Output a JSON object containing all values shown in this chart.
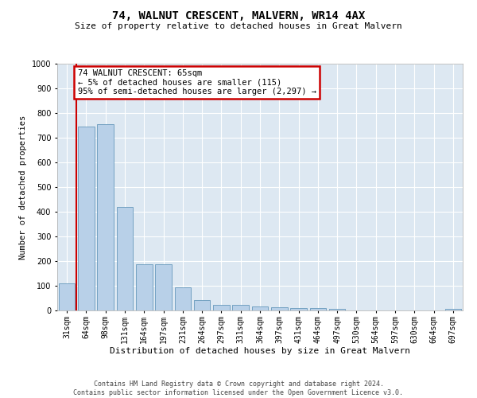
{
  "title": "74, WALNUT CRESCENT, MALVERN, WR14 4AX",
  "subtitle": "Size of property relative to detached houses in Great Malvern",
  "xlabel": "Distribution of detached houses by size in Great Malvern",
  "ylabel": "Number of detached properties",
  "footer_line1": "Contains HM Land Registry data © Crown copyright and database right 2024.",
  "footer_line2": "Contains public sector information licensed under the Open Government Licence v3.0.",
  "categories": [
    "31sqm",
    "64sqm",
    "98sqm",
    "131sqm",
    "164sqm",
    "197sqm",
    "231sqm",
    "264sqm",
    "297sqm",
    "331sqm",
    "364sqm",
    "397sqm",
    "431sqm",
    "464sqm",
    "497sqm",
    "530sqm",
    "564sqm",
    "597sqm",
    "630sqm",
    "664sqm",
    "697sqm"
  ],
  "values": [
    110,
    745,
    755,
    420,
    188,
    188,
    95,
    42,
    22,
    22,
    15,
    12,
    10,
    10,
    8,
    1,
    0,
    0,
    0,
    0,
    8
  ],
  "bar_color": "#b8d0e8",
  "bar_edge_color": "#6699bb",
  "bg_color": "#dde8f2",
  "annotation_line1": "74 WALNUT CRESCENT: 65sqm",
  "annotation_line2": "← 5% of detached houses are smaller (115)",
  "annotation_line3": "95% of semi-detached houses are larger (2,297) →",
  "annotation_box_facecolor": "#ffffff",
  "annotation_box_edgecolor": "#cc0000",
  "vline_color": "#cc0000",
  "vline_x": 0.5,
  "ylim": [
    0,
    1000
  ],
  "yticks": [
    0,
    100,
    200,
    300,
    400,
    500,
    600,
    700,
    800,
    900,
    1000
  ],
  "grid_color": "#ffffff",
  "title_fontsize": 10,
  "subtitle_fontsize": 8,
  "xlabel_fontsize": 8,
  "ylabel_fontsize": 7.5,
  "tick_fontsize": 7,
  "annotation_fontsize": 7.5,
  "footer_fontsize": 6
}
